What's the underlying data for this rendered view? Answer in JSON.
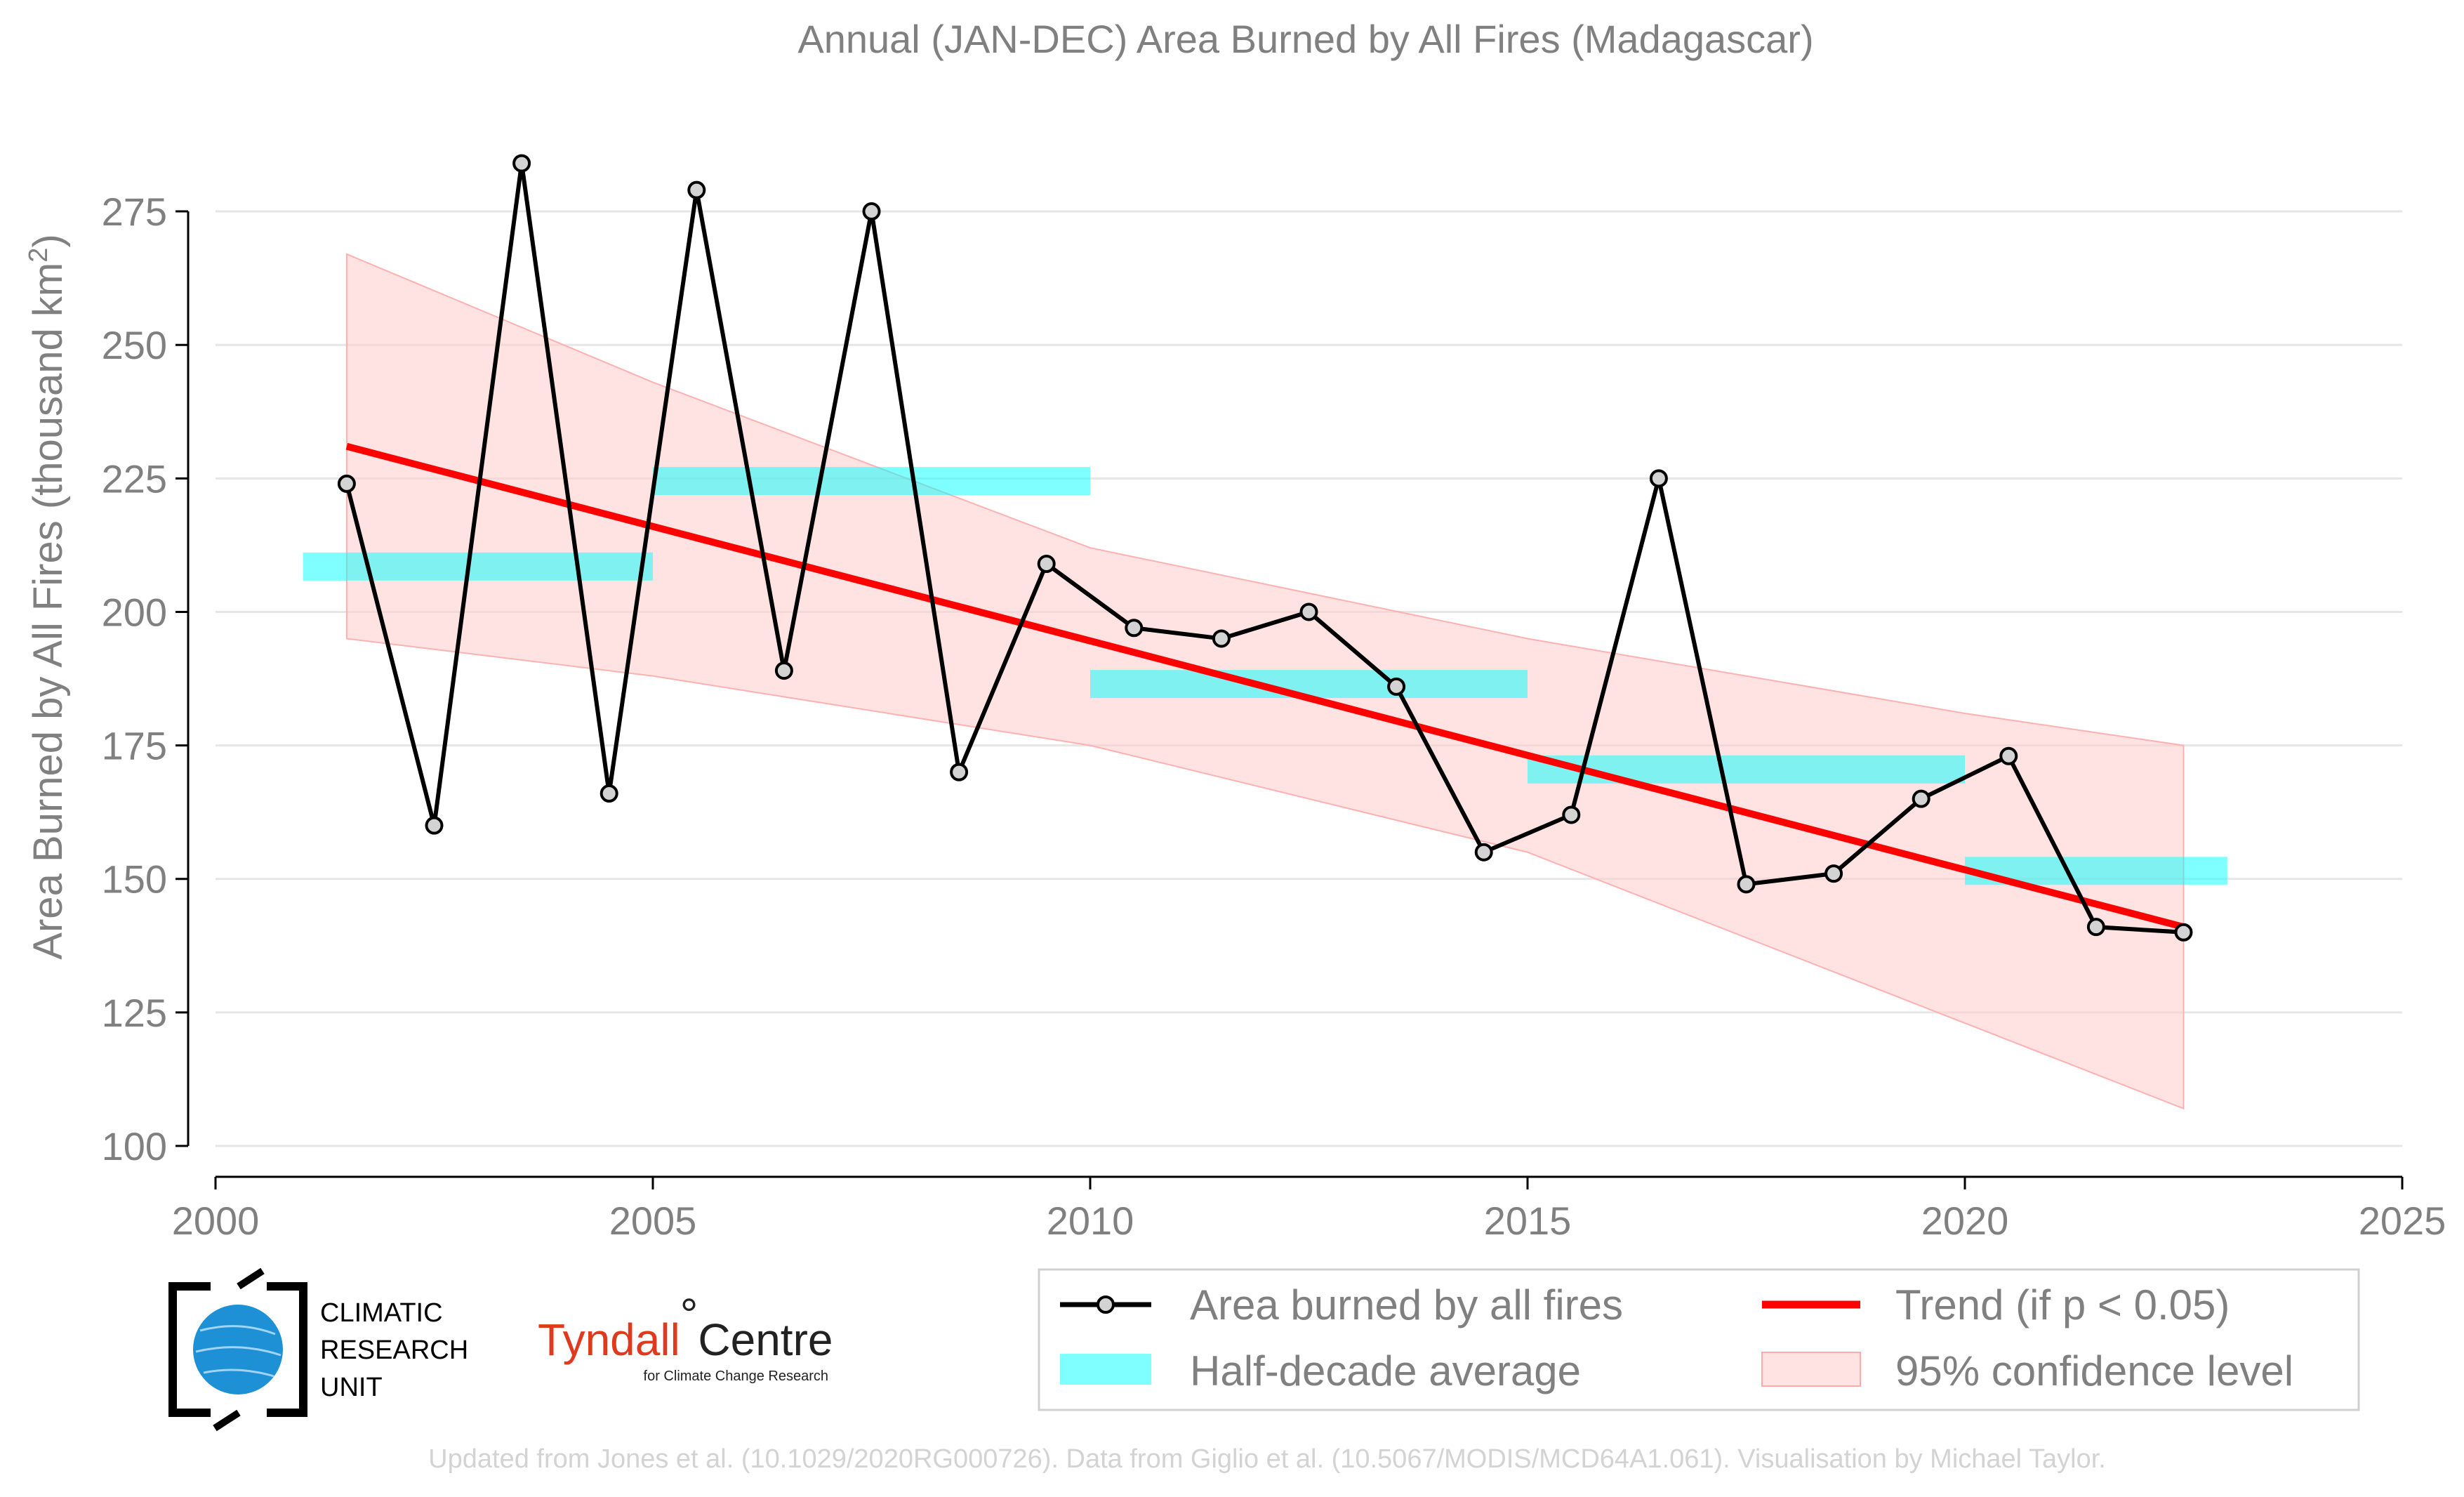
{
  "chart_data": {
    "type": "line",
    "title": "Annual (JAN-DEC) Area Burned by All Fires (Madagascar)",
    "ylabel_main": "Area Burned by All Fires (thousand km",
    "ylabel_sup": "2",
    "ylabel_close": ")",
    "xlabel": "",
    "xlim": [
      2000,
      2025
    ],
    "ylim": [
      100,
      285
    ],
    "xticks": [
      "2000",
      "2005",
      "2010",
      "2015",
      "2020",
      "2025"
    ],
    "yticks": [
      "100",
      "125",
      "150",
      "175",
      "200",
      "225",
      "250",
      "275"
    ],
    "grid": "horizontal",
    "series": [
      {
        "name": "Area burned by all fires",
        "color": "#000000",
        "x": [
          2001.5,
          2002.5,
          2003.5,
          2004.5,
          2005.5,
          2006.5,
          2007.5,
          2008.5,
          2009.5,
          2010.5,
          2011.5,
          2012.5,
          2013.5,
          2014.5,
          2015.5,
          2016.5,
          2017.5,
          2018.5,
          2019.5,
          2020.5,
          2021.5,
          2022.5
        ],
        "values": [
          224,
          160,
          284,
          166,
          279,
          189,
          275,
          170,
          209,
          197,
          195,
          200,
          186,
          155,
          162,
          225,
          149,
          151,
          165,
          173,
          141,
          140
        ]
      }
    ],
    "half_decade_average": {
      "name": "Half-decade average",
      "color": "#00ffff",
      "segments": [
        {
          "x0": 2001.0,
          "x1": 2005.0,
          "value": 208.5
        },
        {
          "x0": 2005.0,
          "x1": 2010.0,
          "value": 224.5
        },
        {
          "x0": 2010.0,
          "x1": 2015.0,
          "value": 186.5
        },
        {
          "x0": 2015.0,
          "x1": 2020.0,
          "value": 170.5
        },
        {
          "x0": 2020.0,
          "x1": 2023.0,
          "value": 151.5
        }
      ]
    },
    "trend": {
      "name": "Trend (if p < 0.05)",
      "color": "#ff0000",
      "x": [
        2001.5,
        2022.5
      ],
      "values": [
        231,
        141
      ]
    },
    "confidence_band": {
      "name": "95% confidence level",
      "color": "#ffb6b6",
      "x": [
        2001.5,
        2005,
        2010,
        2015,
        2020,
        2022.5
      ],
      "upper": [
        267,
        243,
        212,
        195,
        181,
        175
      ],
      "lower": [
        195,
        188,
        175,
        155,
        123,
        107
      ]
    },
    "legend_position": "bottom-right"
  },
  "logos": {
    "cru": [
      "CLIMATIC",
      "RESEARCH",
      "UNIT"
    ],
    "tyndall_main": "Tyndall",
    "tyndall_degree": "°",
    "tyndall_centre": "Centre",
    "tyndall_sub": "for Climate Change Research"
  },
  "footer": "Updated from Jones et al. (10.1029/2020RG000726). Data from Giglio et al. (10.5067/MODIS/MCD64A1.061). Visualisation by Michael Taylor."
}
